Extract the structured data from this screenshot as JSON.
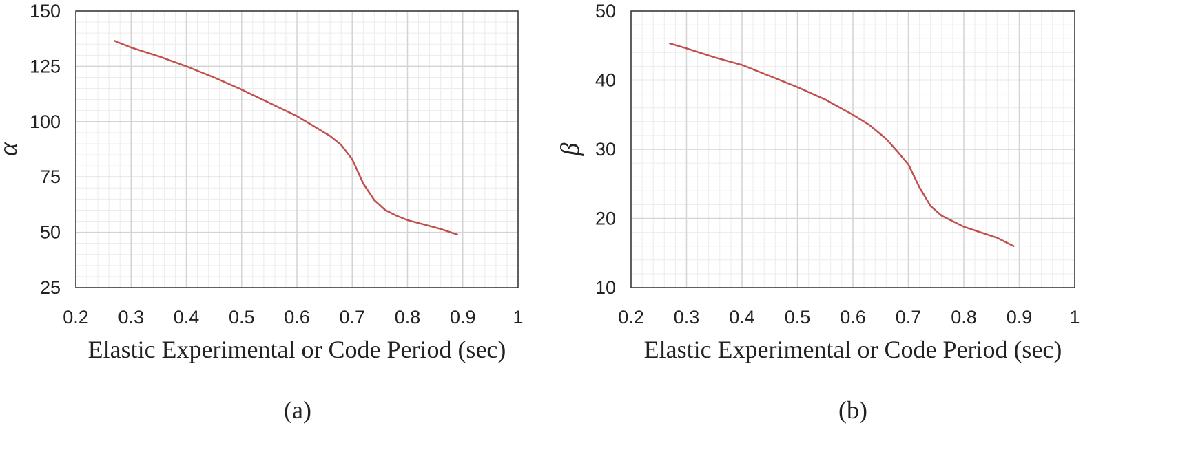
{
  "chart_data": [
    {
      "type": "line",
      "panel_label": "(a)",
      "title": "",
      "xlabel": "Elastic Experimental or Code Period (sec)",
      "ylabel": "α",
      "xlim": [
        0.2,
        1.0
      ],
      "ylim": [
        25,
        150
      ],
      "xticks": [
        0.2,
        0.3,
        0.4,
        0.5,
        0.6,
        0.7,
        0.8,
        0.9,
        1.0
      ],
      "xtick_labels": [
        "0.2",
        "0.3",
        "0.4",
        "0.5",
        "0.6",
        "0.7",
        "0.8",
        "0.9",
        "1"
      ],
      "yticks": [
        25,
        50,
        75,
        100,
        125,
        150
      ],
      "ytick_labels": [
        "25",
        "50",
        "75",
        "100",
        "125",
        "150"
      ],
      "grid": true,
      "series": [
        {
          "name": "α",
          "color": "#c0504d",
          "x": [
            0.27,
            0.3,
            0.35,
            0.4,
            0.45,
            0.5,
            0.55,
            0.6,
            0.63,
            0.66,
            0.68,
            0.7,
            0.72,
            0.74,
            0.76,
            0.78,
            0.8,
            0.83,
            0.86,
            0.89
          ],
          "y": [
            136.5,
            133.5,
            129.5,
            125.0,
            120.0,
            114.5,
            108.5,
            102.5,
            98.0,
            93.5,
            89.5,
            83.0,
            72.0,
            64.5,
            60.0,
            57.5,
            55.5,
            53.5,
            51.5,
            49.0
          ]
        }
      ]
    },
    {
      "type": "line",
      "panel_label": "(b)",
      "title": "",
      "xlabel": "Elastic Experimental or Code Period (sec)",
      "ylabel": "β",
      "xlim": [
        0.2,
        1.0
      ],
      "ylim": [
        10,
        50
      ],
      "xticks": [
        0.2,
        0.3,
        0.4,
        0.5,
        0.6,
        0.7,
        0.8,
        0.9,
        1.0
      ],
      "xtick_labels": [
        "0.2",
        "0.3",
        "0.4",
        "0.5",
        "0.6",
        "0.7",
        "0.8",
        "0.9",
        "1"
      ],
      "yticks": [
        10,
        20,
        30,
        40,
        50
      ],
      "ytick_labels": [
        "10",
        "20",
        "30",
        "40",
        "50"
      ],
      "grid": true,
      "series": [
        {
          "name": "β",
          "color": "#c0504d",
          "x": [
            0.27,
            0.3,
            0.35,
            0.4,
            0.45,
            0.5,
            0.55,
            0.6,
            0.63,
            0.66,
            0.68,
            0.7,
            0.72,
            0.74,
            0.76,
            0.78,
            0.8,
            0.83,
            0.86,
            0.89
          ],
          "y": [
            45.3,
            44.6,
            43.3,
            42.2,
            40.6,
            39.0,
            37.2,
            35.0,
            33.5,
            31.5,
            29.7,
            27.8,
            24.5,
            21.8,
            20.4,
            19.6,
            18.8,
            18.0,
            17.2,
            16.0
          ]
        }
      ]
    }
  ]
}
